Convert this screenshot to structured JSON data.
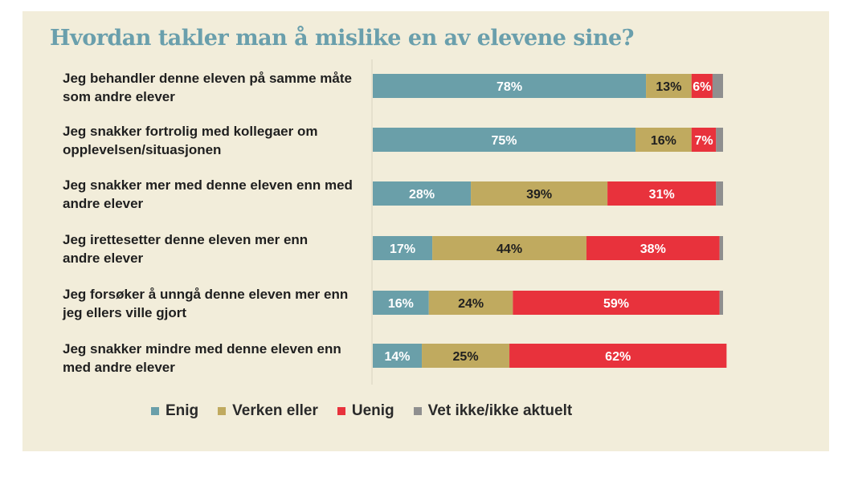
{
  "title": "Hvordan takler man å mislike en av elevene sine?",
  "colors": {
    "enig": "#6a9fa9",
    "verken": "#c0aa5f",
    "uenig": "#e8323c",
    "vet_ikke": "#8f8f8f",
    "axis": "#d8d2c0"
  },
  "chart_data": {
    "type": "bar",
    "orientation": "horizontal",
    "stacked": true,
    "title": "Hvordan takler man å mislike en av elevene sine?",
    "categories": [
      "Jeg behandler denne eleven på samme måte som andre elever",
      "Jeg snakker fortrolig med kollegaer om opplevelsen/situasjonen",
      "Jeg snakker mer med denne eleven enn med andre elever",
      "Jeg irettesetter denne eleven mer enn andre elever",
      "Jeg forsøker å unngå denne eleven mer enn jeg ellers ville gjort",
      "Jeg snakker mindre med denne eleven enn med andre elever"
    ],
    "series": [
      {
        "name": "Enig",
        "values": [
          78,
          75,
          28,
          17,
          16,
          14
        ],
        "labels": [
          "78%",
          "75%",
          "28%",
          "17%",
          "16%",
          "14%"
        ]
      },
      {
        "name": "Verken eller",
        "values": [
          13,
          16,
          39,
          44,
          24,
          25
        ],
        "labels": [
          "13%",
          "16%",
          "39%",
          "44%",
          "24%",
          "25%"
        ]
      },
      {
        "name": "Uenig",
        "values": [
          6,
          7,
          31,
          38,
          59,
          62
        ],
        "labels": [
          "6%",
          "7%",
          "31%",
          "38%",
          "59%",
          "62%"
        ]
      },
      {
        "name": "Vet ikke/ikke aktuelt",
        "values": [
          3,
          2,
          2,
          1,
          1,
          0
        ],
        "labels": [
          "",
          "",
          "",
          "",
          "",
          ""
        ]
      }
    ],
    "xlim": [
      0,
      100
    ],
    "legend_position": "bottom"
  },
  "labels": [
    [
      "Jeg behandler denne eleven på samme måte",
      "som andre elever"
    ],
    [
      "Jeg snakker fortrolig med kollegaer om",
      "opplevelsen/situasjonen"
    ],
    [
      "Jeg snakker mer med denne eleven enn med",
      "andre elever"
    ],
    [
      "Jeg irettesetter denne eleven mer enn",
      "andre elever"
    ],
    [
      "Jeg forsøker å unngå denne eleven mer enn",
      "jeg ellers ville gjort"
    ],
    [
      "Jeg snakker mindre med denne eleven enn",
      "med andre elever"
    ]
  ],
  "legend": [
    "Enig",
    "Verken eller",
    "Uenig",
    "Vet ikke/ikke aktuelt"
  ]
}
